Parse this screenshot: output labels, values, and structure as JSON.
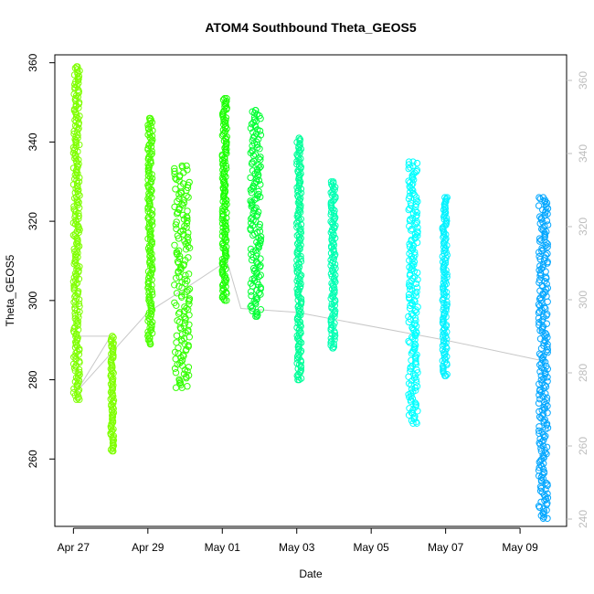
{
  "chart_data": {
    "type": "scatter",
    "title": "ATOM4 Southbound Theta_GEOS5",
    "xlabel": "Date",
    "ylabel": "Theta_GEOS5",
    "x_ticks": [
      "Apr 27",
      "Apr 29",
      "May 01",
      "May 03",
      "May 05",
      "May 07",
      "May 09"
    ],
    "y_ticks_left": [
      "260",
      "280",
      "300",
      "320",
      "340",
      "360"
    ],
    "y_ticks_right": [
      "240",
      "260",
      "280",
      "300",
      "320",
      "340",
      "360"
    ],
    "xlim": [
      "Apr 26 12:00",
      "May 10 06:00"
    ],
    "ylim_left": [
      243,
      362
    ],
    "ylim_right": [
      238,
      367
    ],
    "grid": false,
    "legend": "none",
    "marker": "open circle",
    "segments": [
      {
        "start": "Apr 27 00:00",
        "end": "Apr 27 04:00",
        "ymin": 275,
        "ymax": 359,
        "color": "#7FFF00"
      },
      {
        "start": "Apr 28 00:00",
        "end": "Apr 28 02:00",
        "ymin": 262,
        "ymax": 291,
        "color": "#7FFF00"
      },
      {
        "start": "Apr 29 00:00",
        "end": "Apr 29 03:00",
        "ymin": 289,
        "ymax": 346,
        "color": "#4CFF00"
      },
      {
        "start": "Apr 29 17:00",
        "end": "Apr 30 03:00",
        "ymin": 278,
        "ymax": 334,
        "color": "#33FF00"
      },
      {
        "start": "May 01 00:00",
        "end": "May 01 03:00",
        "ymin": 300,
        "ymax": 351,
        "color": "#19FF00"
      },
      {
        "start": "May 01 18:00",
        "end": "May 02 01:00",
        "ymin": 296,
        "ymax": 348,
        "color": "#00FF33"
      },
      {
        "start": "May 03 00:00",
        "end": "May 03 03:00",
        "ymin": 280,
        "ymax": 341,
        "color": "#00FF99"
      },
      {
        "start": "May 03 22:00",
        "end": "May 04 01:00",
        "ymin": 288,
        "ymax": 330,
        "color": "#00FFB2"
      },
      {
        "start": "May 06 00:00",
        "end": "May 06 06:00",
        "ymin": 269,
        "ymax": 335,
        "color": "#00FFFF"
      },
      {
        "start": "May 06 22:00",
        "end": "May 07 01:00",
        "ymin": 281,
        "ymax": 326,
        "color": "#00F2FF"
      },
      {
        "start": "May 09 12:00",
        "end": "May 09 18:00",
        "ymin": 245,
        "ymax": 326,
        "color": "#00A6FF"
      }
    ],
    "connector_points": [
      {
        "x": "Apr 27 00:00",
        "y": 291
      },
      {
        "x": "Apr 28 00:00",
        "y": 291
      },
      {
        "x": "Apr 27 02:00",
        "y": 277
      },
      {
        "x": "Apr 29 00:00",
        "y": 297
      },
      {
        "x": "Apr 30 00:00",
        "y": 303
      },
      {
        "x": "May 01 03:00",
        "y": 310
      },
      {
        "x": "May 01 12:00",
        "y": 298
      },
      {
        "x": "May 03 00:00",
        "y": 297
      },
      {
        "x": "May 07 00:00",
        "y": 290
      },
      {
        "x": "May 09 12:00",
        "y": 285
      }
    ],
    "colors": {
      "connector": "#c8c8c8",
      "axis": "#000000",
      "right_axis": "#bdbdbd"
    }
  }
}
